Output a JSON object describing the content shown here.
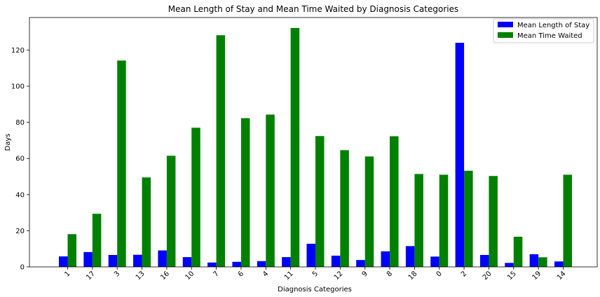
{
  "chart_data": {
    "type": "bar",
    "title": "Mean Length of Stay and Mean Time Waited by Diagnosis Categories",
    "xlabel": "Diagnosis Categories",
    "ylabel": "Days",
    "categories": [
      "1",
      "17",
      "3",
      "13",
      "16",
      "10",
      "7",
      "6",
      "4",
      "11",
      "5",
      "12",
      "9",
      "8",
      "18",
      "0",
      "2",
      "20",
      "15",
      "19",
      "14"
    ],
    "ylim": [
      0,
      138
    ],
    "yticks": [
      0,
      20,
      40,
      60,
      80,
      100,
      120
    ],
    "grid": false,
    "legend_position": "top-right",
    "series": [
      {
        "name": "Mean Length of Stay",
        "color": "#0000ff",
        "values": [
          5.8,
          8.2,
          6.6,
          6.7,
          9.1,
          5.4,
          2.4,
          2.8,
          3.2,
          5.4,
          12.8,
          6.2,
          3.8,
          8.6,
          11.5,
          5.7,
          124,
          6.6,
          2.2,
          7.0,
          3.0
        ]
      },
      {
        "name": "Mean Time Waited",
        "color": "#008000",
        "values": [
          18.1,
          29.4,
          114.2,
          49.5,
          61.5,
          77.0,
          128.2,
          82.3,
          84.3,
          132.2,
          72.4,
          64.6,
          61.1,
          72.3,
          51.4,
          51.0,
          53.2,
          50.3,
          16.7,
          5.3,
          51.0
        ]
      }
    ]
  }
}
